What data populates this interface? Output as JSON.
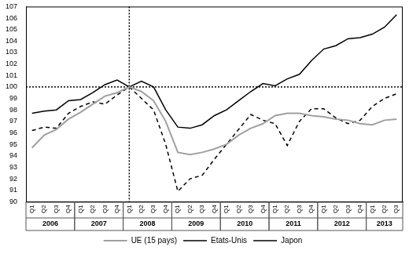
{
  "chart_data": {
    "type": "line",
    "categories": [
      "Q1",
      "Q2",
      "Q3",
      "Q4",
      "Q1",
      "Q2",
      "Q3",
      "Q4",
      "Q1",
      "Q2",
      "Q3",
      "Q4",
      "Q1",
      "Q2",
      "Q3",
      "Q4",
      "Q1",
      "Q2",
      "Q3",
      "Q4",
      "Q1",
      "Q2",
      "Q3",
      "Q4",
      "Q1",
      "Q2",
      "Q3",
      "Q4",
      "Q1",
      "Q2",
      "Q3"
    ],
    "years": [
      "2006",
      "2006",
      "2006",
      "2006",
      "2007",
      "2007",
      "2007",
      "2007",
      "2008",
      "2008",
      "2008",
      "2008",
      "2009",
      "2009",
      "2009",
      "2009",
      "2010",
      "2010",
      "2010",
      "2010",
      "2011",
      "2011",
      "2011",
      "2011",
      "2012",
      "2012",
      "2012",
      "2012",
      "2013",
      "2013",
      "2013"
    ],
    "series": [
      {
        "name": "UE (15 pays)",
        "color": "#a0a0a0",
        "line_style": "solid",
        "values": [
          94.7,
          95.8,
          96.3,
          97.2,
          97.8,
          98.5,
          99.2,
          99.5,
          100.0,
          99.6,
          98.8,
          97.0,
          94.3,
          94.1,
          94.3,
          94.6,
          95.0,
          95.8,
          96.4,
          96.8,
          97.5,
          97.7,
          97.7,
          97.5,
          97.4,
          97.2,
          97.1,
          96.8,
          96.7,
          97.1,
          97.2
        ]
      },
      {
        "name": "Etats-Unis",
        "color": "#000000",
        "line_style": "solid",
        "values": [
          97.7,
          97.9,
          98.0,
          98.8,
          98.9,
          99.5,
          100.2,
          100.6,
          100.0,
          100.5,
          100.0,
          98.0,
          96.5,
          96.4,
          96.7,
          97.5,
          98.0,
          98.8,
          99.6,
          100.3,
          100.1,
          100.7,
          101.1,
          102.3,
          103.3,
          103.6,
          104.2,
          104.3,
          104.6,
          105.2,
          106.3
        ]
      },
      {
        "name": "Japon",
        "color": "#000000",
        "line_style": "dashed",
        "values": [
          96.2,
          96.5,
          96.4,
          97.7,
          98.3,
          98.7,
          98.5,
          99.3,
          100.0,
          99.0,
          98.0,
          95.0,
          90.9,
          92.0,
          92.3,
          93.7,
          95.0,
          96.3,
          97.6,
          97.1,
          96.8,
          94.9,
          97.0,
          98.1,
          98.1,
          97.3,
          96.8,
          97.1,
          98.3,
          99.0,
          99.4
        ]
      }
    ],
    "ylim": [
      90,
      107
    ],
    "yticks": [
      90,
      91,
      92,
      93,
      94,
      95,
      96,
      97,
      98,
      99,
      100,
      101,
      102,
      103,
      104,
      105,
      106,
      107
    ],
    "y_reference": 100,
    "x_reference": {
      "year": "2008",
      "category": "Q1"
    },
    "grid": false,
    "legend": "bottom"
  }
}
